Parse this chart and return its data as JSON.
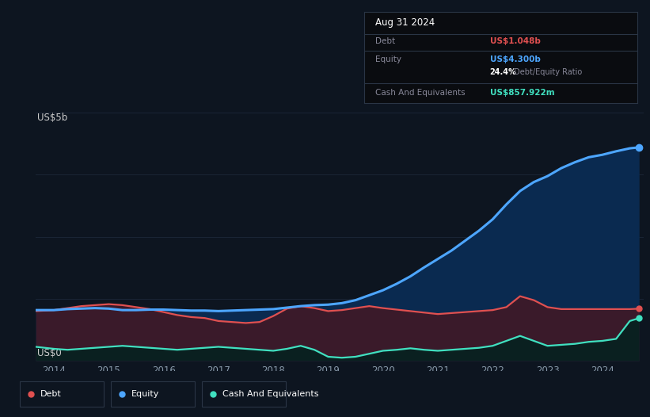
{
  "bg_color": "#0d1520",
  "plot_bg_color": "#0d1520",
  "debt_color": "#e05050",
  "equity_color": "#4da6ff",
  "cash_color": "#40e0c0",
  "equity_fill_color": "#0a2a50",
  "debt_fill_color": "#3a1a2a",
  "cash_fill_color": "#0a2020",
  "grid_color": "#1a2535",
  "ylabel": "US$5b",
  "y0label": "US$0",
  "ylim_max": 5.0,
  "xmin": 2013.67,
  "xmax": 2024.75,
  "xticks": [
    2014,
    2015,
    2016,
    2017,
    2018,
    2019,
    2020,
    2021,
    2022,
    2023,
    2024
  ],
  "grid_yvals": [
    1.25,
    2.5,
    3.75,
    5.0
  ],
  "years": [
    2013.67,
    2014.0,
    2014.25,
    2014.5,
    2014.75,
    2015.0,
    2015.25,
    2015.5,
    2015.75,
    2016.0,
    2016.25,
    2016.5,
    2016.75,
    2017.0,
    2017.25,
    2017.5,
    2017.75,
    2018.0,
    2018.25,
    2018.5,
    2018.75,
    2019.0,
    2019.25,
    2019.5,
    2019.75,
    2020.0,
    2020.25,
    2020.5,
    2020.75,
    2021.0,
    2021.25,
    2021.5,
    2021.75,
    2022.0,
    2022.25,
    2022.5,
    2022.75,
    2023.0,
    2023.25,
    2023.5,
    2023.75,
    2024.0,
    2024.25,
    2024.5,
    2024.67
  ],
  "equity": [
    1.02,
    1.02,
    1.04,
    1.05,
    1.06,
    1.05,
    1.02,
    1.02,
    1.03,
    1.03,
    1.02,
    1.01,
    1.01,
    1.0,
    1.01,
    1.02,
    1.03,
    1.04,
    1.07,
    1.1,
    1.12,
    1.13,
    1.16,
    1.22,
    1.32,
    1.42,
    1.55,
    1.7,
    1.88,
    2.05,
    2.22,
    2.42,
    2.62,
    2.85,
    3.15,
    3.42,
    3.6,
    3.72,
    3.88,
    4.0,
    4.1,
    4.15,
    4.22,
    4.28,
    4.3
  ],
  "debt": [
    1.0,
    1.02,
    1.06,
    1.1,
    1.12,
    1.14,
    1.12,
    1.08,
    1.04,
    0.98,
    0.92,
    0.88,
    0.86,
    0.8,
    0.78,
    0.76,
    0.78,
    0.9,
    1.05,
    1.1,
    1.06,
    1.0,
    1.02,
    1.06,
    1.1,
    1.06,
    1.03,
    1.0,
    0.97,
    0.94,
    0.96,
    0.98,
    1.0,
    1.02,
    1.08,
    1.3,
    1.22,
    1.08,
    1.04,
    1.04,
    1.04,
    1.04,
    1.04,
    1.04,
    1.048
  ],
  "cash": [
    0.28,
    0.24,
    0.22,
    0.24,
    0.26,
    0.28,
    0.3,
    0.28,
    0.26,
    0.24,
    0.22,
    0.24,
    0.26,
    0.28,
    0.26,
    0.24,
    0.22,
    0.2,
    0.24,
    0.3,
    0.22,
    0.08,
    0.06,
    0.08,
    0.14,
    0.2,
    0.22,
    0.25,
    0.22,
    0.2,
    0.22,
    0.24,
    0.26,
    0.3,
    0.4,
    0.5,
    0.4,
    0.3,
    0.32,
    0.34,
    0.38,
    0.4,
    0.44,
    0.8,
    0.858
  ],
  "tooltip_title": "Aug 31 2024",
  "tooltip_debt_label": "Debt",
  "tooltip_debt_value": "US$1.048b",
  "tooltip_equity_label": "Equity",
  "tooltip_equity_value": "US$4.300b",
  "tooltip_ratio": "24.4%",
  "tooltip_ratio_suffix": " Debt/Equity Ratio",
  "tooltip_cash_label": "Cash And Equivalents",
  "tooltip_cash_value": "US$857.922m",
  "legend_items": [
    {
      "label": "Debt",
      "color": "#e05050"
    },
    {
      "label": "Equity",
      "color": "#4da6ff"
    },
    {
      "label": "Cash And Equivalents",
      "color": "#40e0c0"
    }
  ]
}
